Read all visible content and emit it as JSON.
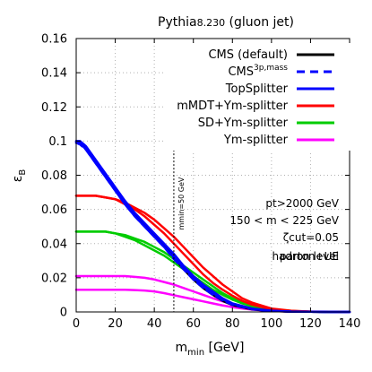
{
  "chart_data": {
    "type": "line",
    "title": "Pythia8.230 (gluon jet)",
    "title_parts": {
      "main": "Pythia",
      "version": "8.230",
      "suffix": " (gluon jet)"
    },
    "xlabel": "m_min [GeV]",
    "xlabel_parts": {
      "main": "m",
      "sub": "min",
      "unit": " [GeV]"
    },
    "ylabel": "ε_B",
    "ylabel_parts": {
      "main": "ε",
      "sub": "B"
    },
    "xlim": [
      0,
      140
    ],
    "ylim": [
      0,
      0.16
    ],
    "xticks": [
      "0",
      "20",
      "40",
      "60",
      "80",
      "100",
      "120",
      "140"
    ],
    "yticks": [
      "0",
      "0.02",
      "0.04",
      "0.06",
      "0.08",
      "0.1",
      "0.12",
      "0.14",
      "0.16"
    ],
    "grid": true,
    "legend_position": "top-right",
    "legend": [
      {
        "label": "CMS (default)",
        "color": "#000000",
        "dash": "solid"
      },
      {
        "label": "CMS3p,mass",
        "label_main": "CMS",
        "label_sup": "3p,mass",
        "color": "#0000ff",
        "dash": "dashed"
      },
      {
        "label": "TopSplitter",
        "color": "#0000ff",
        "dash": "solid"
      },
      {
        "label": "mMDT+Ym-splitter",
        "color": "#ff0000",
        "dash": "solid"
      },
      {
        "label": "SD+Ym-splitter",
        "color": "#00cc00",
        "dash": "solid"
      },
      {
        "label": "Ym-splitter",
        "color": "#ff00ff",
        "dash": "solid"
      }
    ],
    "vertical_line": {
      "x": 50,
      "label": "mmin=50 GeV"
    },
    "annotations": {
      "pt": "pt>2000 GeV",
      "mass": "150 < m < 225 GeV",
      "zeta": "ζcut=0.05",
      "level": "parton+UE",
      "level_overlay": "hadron level"
    },
    "series": [
      {
        "group": "CMS (default)",
        "color": "#000000",
        "dash": "solid",
        "x": [
          0,
          2,
          5,
          10,
          15,
          20,
          25,
          30,
          35,
          40,
          45,
          50,
          55,
          60,
          65,
          70,
          75,
          80,
          90,
          100,
          110,
          120,
          130,
          140
        ],
        "values": [
          0.1,
          0.099,
          0.096,
          0.088,
          0.08,
          0.072,
          0.064,
          0.057,
          0.051,
          0.045,
          0.039,
          0.032,
          0.025,
          0.019,
          0.014,
          0.01,
          0.0065,
          0.004,
          0.0015,
          0.0005,
          0.0002,
          0.0001,
          0,
          0
        ]
      },
      {
        "group": "CMS3p,mass",
        "color": "#0000ff",
        "dash": "dashed",
        "x": [
          0,
          2,
          5,
          10,
          15,
          20,
          25,
          30,
          35,
          40,
          45,
          50,
          55,
          60,
          65,
          70,
          75,
          80,
          90,
          100,
          110,
          120,
          130,
          140
        ],
        "values": [
          0.099,
          0.098,
          0.095,
          0.087,
          0.079,
          0.071,
          0.063,
          0.056,
          0.05,
          0.044,
          0.038,
          0.031,
          0.025,
          0.019,
          0.014,
          0.01,
          0.0068,
          0.0042,
          0.0016,
          0.0005,
          0.0002,
          0.0001,
          0,
          0
        ]
      },
      {
        "group": "TopSplitter",
        "color": "#0000ff",
        "dash": "solid",
        "x": [
          0,
          2,
          5,
          10,
          15,
          20,
          25,
          30,
          35,
          40,
          45,
          50,
          55,
          60,
          65,
          70,
          75,
          80,
          90,
          100,
          110,
          120,
          130,
          140
        ],
        "values": [
          0.1,
          0.1,
          0.097,
          0.089,
          0.081,
          0.073,
          0.065,
          0.058,
          0.052,
          0.046,
          0.04,
          0.034,
          0.027,
          0.021,
          0.016,
          0.012,
          0.008,
          0.005,
          0.002,
          0.0007,
          0.0002,
          0.0001,
          0,
          0
        ]
      },
      {
        "group": "TopSplitter",
        "color": "#0000ff",
        "dash": "solid",
        "x": [
          0,
          2,
          5,
          10,
          15,
          20,
          25,
          30,
          35,
          40,
          45,
          50,
          55,
          60,
          65,
          70,
          75,
          80,
          90,
          100,
          110,
          120,
          130,
          140
        ],
        "values": [
          0.099,
          0.099,
          0.095,
          0.087,
          0.079,
          0.071,
          0.063,
          0.056,
          0.05,
          0.044,
          0.038,
          0.032,
          0.026,
          0.02,
          0.015,
          0.011,
          0.0075,
          0.0047,
          0.0018,
          0.0006,
          0.0002,
          0.0001,
          0,
          0
        ]
      },
      {
        "group": "mMDT+Ym-splitter",
        "color": "#ff0000",
        "dash": "solid",
        "x": [
          0,
          5,
          10,
          15,
          20,
          25,
          30,
          35,
          40,
          45,
          50,
          55,
          60,
          65,
          70,
          75,
          80,
          85,
          90,
          100,
          110,
          120,
          130,
          140
        ],
        "values": [
          0.068,
          0.068,
          0.068,
          0.067,
          0.066,
          0.064,
          0.061,
          0.058,
          0.054,
          0.049,
          0.044,
          0.038,
          0.032,
          0.026,
          0.021,
          0.016,
          0.012,
          0.008,
          0.0055,
          0.002,
          0.0007,
          0.0002,
          0.0001,
          0
        ]
      },
      {
        "group": "mMDT+Ym-splitter",
        "color": "#ff0000",
        "dash": "solid",
        "x": [
          0,
          5,
          10,
          15,
          20,
          25,
          30,
          35,
          40,
          45,
          50,
          55,
          60,
          65,
          70,
          75,
          80,
          85,
          90,
          100,
          110,
          120,
          130,
          140
        ],
        "values": [
          0.068,
          0.068,
          0.068,
          0.067,
          0.066,
          0.063,
          0.06,
          0.056,
          0.051,
          0.046,
          0.04,
          0.034,
          0.028,
          0.022,
          0.017,
          0.013,
          0.0095,
          0.0065,
          0.0043,
          0.0015,
          0.0005,
          0.0002,
          0.0001,
          0
        ]
      },
      {
        "group": "SD+Ym-splitter",
        "color": "#00cc00",
        "dash": "solid",
        "x": [
          0,
          5,
          10,
          15,
          20,
          25,
          30,
          35,
          40,
          45,
          50,
          55,
          60,
          65,
          70,
          75,
          80,
          85,
          90,
          100,
          110,
          120,
          130,
          140
        ],
        "values": [
          0.047,
          0.047,
          0.047,
          0.047,
          0.046,
          0.045,
          0.043,
          0.041,
          0.038,
          0.035,
          0.031,
          0.027,
          0.023,
          0.019,
          0.015,
          0.011,
          0.008,
          0.0055,
          0.0037,
          0.0013,
          0.0004,
          0.0001,
          0,
          0
        ]
      },
      {
        "group": "SD+Ym-splitter",
        "color": "#00cc00",
        "dash": "solid",
        "x": [
          0,
          5,
          10,
          15,
          20,
          25,
          30,
          35,
          40,
          45,
          50,
          55,
          60,
          65,
          70,
          75,
          80,
          85,
          90,
          100,
          110,
          120,
          130,
          140
        ],
        "values": [
          0.047,
          0.047,
          0.047,
          0.047,
          0.046,
          0.044,
          0.042,
          0.039,
          0.036,
          0.033,
          0.029,
          0.025,
          0.021,
          0.017,
          0.013,
          0.01,
          0.0072,
          0.005,
          0.0033,
          0.0012,
          0.0004,
          0.0001,
          0,
          0
        ]
      },
      {
        "group": "Ym-splitter",
        "color": "#ff00ff",
        "dash": "solid",
        "x": [
          0,
          5,
          10,
          15,
          20,
          25,
          30,
          35,
          40,
          45,
          50,
          55,
          60,
          65,
          70,
          75,
          80,
          85,
          90,
          100,
          110,
          120,
          130,
          140
        ],
        "values": [
          0.021,
          0.021,
          0.021,
          0.021,
          0.021,
          0.021,
          0.0205,
          0.02,
          0.019,
          0.0175,
          0.016,
          0.014,
          0.012,
          0.01,
          0.008,
          0.0062,
          0.0046,
          0.0033,
          0.0022,
          0.0008,
          0.0003,
          0.0001,
          0,
          0
        ]
      },
      {
        "group": "Ym-splitter",
        "color": "#ff00ff",
        "dash": "solid",
        "x": [
          0,
          5,
          10,
          15,
          20,
          25,
          30,
          35,
          40,
          45,
          50,
          55,
          60,
          65,
          70,
          75,
          80,
          85,
          90,
          100,
          110,
          120,
          130,
          140
        ],
        "values": [
          0.013,
          0.013,
          0.013,
          0.013,
          0.013,
          0.013,
          0.0128,
          0.0125,
          0.012,
          0.011,
          0.0098,
          0.0086,
          0.0074,
          0.0062,
          0.005,
          0.0038,
          0.0028,
          0.002,
          0.0014,
          0.0005,
          0.0002,
          0.0001,
          0,
          0
        ]
      }
    ]
  }
}
